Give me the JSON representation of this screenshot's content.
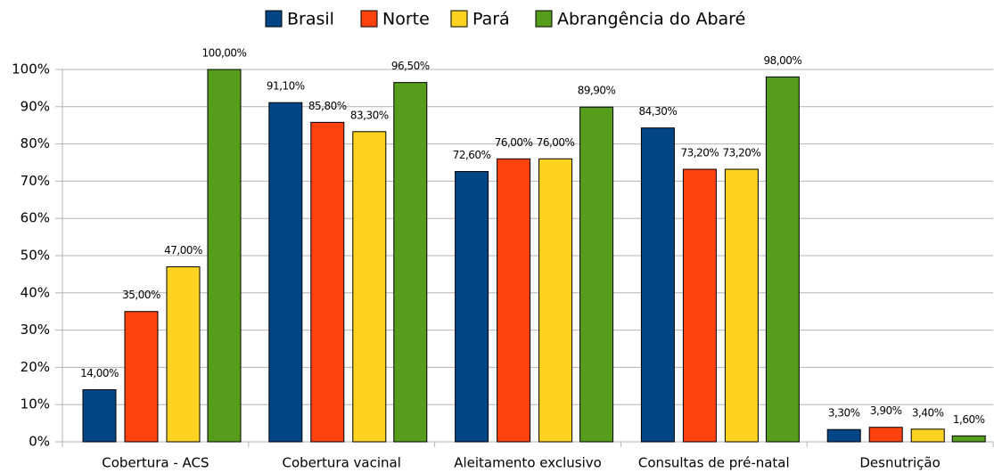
{
  "chart_data": {
    "type": "bar",
    "categories": [
      "Cobertura - ACS",
      "Cobertura vacinal",
      "Aleitamento exclusivo",
      "Consultas de pré-natal",
      "Desnutrição"
    ],
    "series": [
      {
        "name": "Brasil",
        "color": "#004586",
        "values": [
          14,
          91.1,
          72.6,
          84.3,
          3.3
        ],
        "value_labels": [
          "14,00%",
          "91,10%",
          "72,60%",
          "84,30%",
          "3,30%"
        ]
      },
      {
        "name": "Norte",
        "color": "#ff420e",
        "values": [
          35,
          85.8,
          76,
          73.2,
          3.9
        ],
        "value_labels": [
          "35,00%",
          "85,80%",
          "76,00%",
          "73,20%",
          "3,90%"
        ]
      },
      {
        "name": "Pará",
        "color": "#ffd320",
        "values": [
          47,
          83.3,
          76,
          73.2,
          3.4
        ],
        "value_labels": [
          "47,00%",
          "83,30%",
          "76,00%",
          "73,20%",
          "3,40%"
        ]
      },
      {
        "name": "Abrangência do Abaré",
        "color": "#579d1c",
        "values": [
          100,
          96.5,
          89.9,
          98,
          1.6
        ],
        "value_labels": [
          "100,00%",
          "96,50%",
          "89,90%",
          "98,00%",
          "1,60%"
        ]
      }
    ],
    "ylim": [
      0,
      100
    ],
    "yticks": [
      {
        "value": 0,
        "label": "0%"
      },
      {
        "value": 10,
        "label": "10%"
      },
      {
        "value": 20,
        "label": "20%"
      },
      {
        "value": 30,
        "label": "30%"
      },
      {
        "value": 40,
        "label": "40%"
      },
      {
        "value": 50,
        "label": "50%"
      },
      {
        "value": 60,
        "label": "60%"
      },
      {
        "value": 70,
        "label": "70%"
      },
      {
        "value": 80,
        "label": "80%"
      },
      {
        "value": 90,
        "label": "90%"
      },
      {
        "value": 100,
        "label": "100%"
      }
    ],
    "grid": true,
    "legend": "top"
  }
}
